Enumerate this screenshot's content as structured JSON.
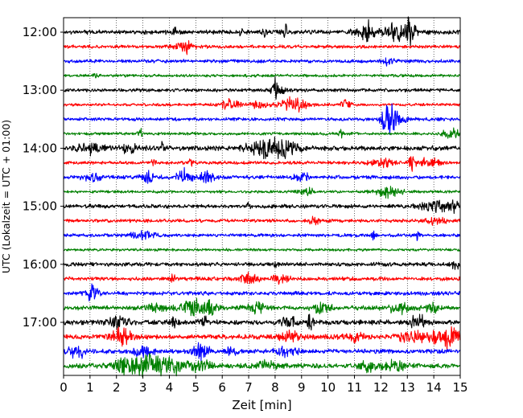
{
  "chart_data": {
    "type": "line",
    "subtype": "helicorder",
    "xlabel": "Zeit  [min]",
    "ylabel": "UTC (Lokalzeit = UTC + 01:00)",
    "xlim": [
      0,
      15
    ],
    "x_ticks": [
      "0",
      "1",
      "2",
      "3",
      "4",
      "5",
      "6",
      "7",
      "8",
      "9",
      "10",
      "11",
      "12",
      "13",
      "14",
      "15"
    ],
    "y_ticks": [
      {
        "label": "12:00",
        "trace_index": 0
      },
      {
        "label": "13:00",
        "trace_index": 4
      },
      {
        "label": "14:00",
        "trace_index": 8
      },
      {
        "label": "15:00",
        "trace_index": 12
      },
      {
        "label": "16:00",
        "trace_index": 16
      },
      {
        "label": "17:00",
        "trace_index": 20
      }
    ],
    "grid": {
      "vertical": true,
      "style": "dotted"
    },
    "color_cycle": [
      "#000000",
      "#ff0000",
      "#0000ff",
      "#008000"
    ],
    "traces": [
      {
        "start": "12:00",
        "color": "#000000",
        "base_amplitude": 0.45,
        "bursts": [
          {
            "t": 4.2,
            "a": 1.2,
            "w": 0.05
          },
          {
            "t": 6.7,
            "a": 1.0,
            "w": 0.05
          },
          {
            "t": 7.6,
            "a": 1.4,
            "w": 0.05
          },
          {
            "t": 8.4,
            "a": 1.5,
            "w": 0.05
          },
          {
            "t": 11.4,
            "a": 1.2,
            "w": 0.3
          },
          {
            "t": 11.5,
            "a": 2.2,
            "w": 0.06
          },
          {
            "t": 12.6,
            "a": 1.8,
            "w": 0.35
          },
          {
            "t": 13.1,
            "a": 2.2,
            "w": 0.15
          }
        ]
      },
      {
        "start": "12:15",
        "color": "#ff0000",
        "base_amplitude": 0.35,
        "bursts": [
          {
            "t": 4.6,
            "a": 2.4,
            "w": 0.06
          },
          {
            "t": 4.5,
            "a": 0.8,
            "w": 0.3
          }
        ]
      },
      {
        "start": "12:30",
        "color": "#0000ff",
        "base_amplitude": 0.35,
        "bursts": [
          {
            "t": 12.3,
            "a": 0.8,
            "w": 0.15
          }
        ]
      },
      {
        "start": "12:45",
        "color": "#008000",
        "base_amplitude": 0.3,
        "bursts": [
          {
            "t": 1.2,
            "a": 0.6,
            "w": 0.06
          }
        ]
      },
      {
        "start": "13:00",
        "color": "#000000",
        "base_amplitude": 0.35,
        "bursts": [
          {
            "t": 8.0,
            "a": 2.0,
            "w": 0.05
          },
          {
            "t": 8.1,
            "a": 1.0,
            "w": 0.2
          }
        ]
      },
      {
        "start": "13:15",
        "color": "#ff0000",
        "base_amplitude": 0.3,
        "bursts": [
          {
            "t": 6.3,
            "a": 1.0,
            "w": 0.25
          },
          {
            "t": 7.4,
            "a": 0.9,
            "w": 0.2
          },
          {
            "t": 8.7,
            "a": 1.5,
            "w": 0.35
          },
          {
            "t": 10.7,
            "a": 1.4,
            "w": 0.12
          }
        ]
      },
      {
        "start": "13:30",
        "color": "#0000ff",
        "base_amplitude": 0.35,
        "bursts": [
          {
            "t": 12.3,
            "a": 2.8,
            "w": 0.18
          },
          {
            "t": 12.5,
            "a": 1.2,
            "w": 0.3
          }
        ]
      },
      {
        "start": "13:45",
        "color": "#008000",
        "base_amplitude": 0.3,
        "bursts": [
          {
            "t": 2.9,
            "a": 1.0,
            "w": 0.06
          },
          {
            "t": 10.5,
            "a": 0.8,
            "w": 0.06
          },
          {
            "t": 14.7,
            "a": 1.1,
            "w": 0.25
          }
        ]
      },
      {
        "start": "14:00",
        "color": "#000000",
        "base_amplitude": 0.5,
        "bursts": [
          {
            "t": 1.0,
            "a": 1.1,
            "w": 0.3
          },
          {
            "t": 2.5,
            "a": 1.0,
            "w": 0.2
          },
          {
            "t": 3.7,
            "a": 1.3,
            "w": 0.05
          },
          {
            "t": 7.6,
            "a": 1.6,
            "w": 0.45
          },
          {
            "t": 8.4,
            "a": 1.9,
            "w": 0.3
          }
        ]
      },
      {
        "start": "14:15",
        "color": "#ff0000",
        "base_amplitude": 0.35,
        "bursts": [
          {
            "t": 3.4,
            "a": 0.9,
            "w": 0.06
          },
          {
            "t": 4.8,
            "a": 0.8,
            "w": 0.06
          },
          {
            "t": 12.0,
            "a": 0.8,
            "w": 0.3
          },
          {
            "t": 13.2,
            "a": 2.2,
            "w": 0.08
          },
          {
            "t": 13.8,
            "a": 1.0,
            "w": 0.25
          }
        ]
      },
      {
        "start": "14:30",
        "color": "#0000ff",
        "base_amplitude": 0.4,
        "bursts": [
          {
            "t": 1.2,
            "a": 0.7,
            "w": 0.3
          },
          {
            "t": 3.2,
            "a": 1.2,
            "w": 0.2
          },
          {
            "t": 4.6,
            "a": 1.6,
            "w": 0.2
          },
          {
            "t": 5.4,
            "a": 1.1,
            "w": 0.2
          },
          {
            "t": 9.0,
            "a": 0.9,
            "w": 0.2
          }
        ]
      },
      {
        "start": "14:45",
        "color": "#008000",
        "base_amplitude": 0.3,
        "bursts": [
          {
            "t": 9.2,
            "a": 0.7,
            "w": 0.2
          },
          {
            "t": 12.2,
            "a": 1.0,
            "w": 0.4
          }
        ]
      },
      {
        "start": "15:00",
        "color": "#000000",
        "base_amplitude": 0.4,
        "bursts": [
          {
            "t": 7.0,
            "a": 1.2,
            "w": 0.06
          },
          {
            "t": 14.0,
            "a": 1.4,
            "w": 0.35
          },
          {
            "t": 14.8,
            "a": 1.0,
            "w": 0.12
          }
        ]
      },
      {
        "start": "15:15",
        "color": "#ff0000",
        "base_amplitude": 0.35,
        "bursts": [
          {
            "t": 9.5,
            "a": 0.9,
            "w": 0.15
          },
          {
            "t": 14.0,
            "a": 0.6,
            "w": 0.3
          }
        ]
      },
      {
        "start": "15:30",
        "color": "#0000ff",
        "base_amplitude": 0.35,
        "bursts": [
          {
            "t": 3.0,
            "a": 0.8,
            "w": 0.3
          },
          {
            "t": 11.7,
            "a": 1.3,
            "w": 0.06
          },
          {
            "t": 13.4,
            "a": 1.0,
            "w": 0.06
          }
        ]
      },
      {
        "start": "15:45",
        "color": "#008000",
        "base_amplitude": 0.28,
        "bursts": []
      },
      {
        "start": "16:00",
        "color": "#000000",
        "base_amplitude": 0.4,
        "bursts": [
          {
            "t": 8.0,
            "a": 0.9,
            "w": 0.06
          },
          {
            "t": 14.8,
            "a": 1.0,
            "w": 0.15
          }
        ]
      },
      {
        "start": "16:15",
        "color": "#ff0000",
        "base_amplitude": 0.4,
        "bursts": [
          {
            "t": 4.1,
            "a": 1.6,
            "w": 0.06
          },
          {
            "t": 7.0,
            "a": 1.0,
            "w": 0.25
          },
          {
            "t": 8.2,
            "a": 1.0,
            "w": 0.2
          }
        ]
      },
      {
        "start": "16:30",
        "color": "#0000ff",
        "base_amplitude": 0.4,
        "bursts": [
          {
            "t": 1.1,
            "a": 1.7,
            "w": 0.15
          }
        ]
      },
      {
        "start": "16:45",
        "color": "#008000",
        "base_amplitude": 0.45,
        "bursts": [
          {
            "t": 3.5,
            "a": 0.8,
            "w": 0.25
          },
          {
            "t": 5.0,
            "a": 1.6,
            "w": 0.4
          },
          {
            "t": 5.6,
            "a": 2.0,
            "w": 0.08
          },
          {
            "t": 7.2,
            "a": 1.0,
            "w": 0.3
          },
          {
            "t": 9.8,
            "a": 0.9,
            "w": 0.3
          },
          {
            "t": 12.7,
            "a": 1.1,
            "w": 0.3
          },
          {
            "t": 13.9,
            "a": 0.9,
            "w": 0.2
          }
        ]
      },
      {
        "start": "17:00",
        "color": "#000000",
        "base_amplitude": 0.5,
        "bursts": [
          {
            "t": 2.1,
            "a": 1.1,
            "w": 0.3
          },
          {
            "t": 4.2,
            "a": 1.3,
            "w": 0.12
          },
          {
            "t": 5.3,
            "a": 1.5,
            "w": 0.1
          },
          {
            "t": 8.5,
            "a": 1.4,
            "w": 0.2
          },
          {
            "t": 9.3,
            "a": 1.8,
            "w": 0.08
          },
          {
            "t": 13.4,
            "a": 1.6,
            "w": 0.2
          }
        ]
      },
      {
        "start": "17:15",
        "color": "#ff0000",
        "base_amplitude": 0.5,
        "bursts": [
          {
            "t": 2.2,
            "a": 1.8,
            "w": 0.25
          },
          {
            "t": 8.6,
            "a": 1.1,
            "w": 0.3
          },
          {
            "t": 11.0,
            "a": 0.8,
            "w": 0.3
          },
          {
            "t": 13.2,
            "a": 1.3,
            "w": 0.35
          },
          {
            "t": 14.5,
            "a": 2.1,
            "w": 0.4
          }
        ]
      },
      {
        "start": "17:30",
        "color": "#0000ff",
        "base_amplitude": 0.45,
        "bursts": [
          {
            "t": 0.5,
            "a": 1.6,
            "w": 0.2
          },
          {
            "t": 3.0,
            "a": 1.0,
            "w": 0.3
          },
          {
            "t": 5.2,
            "a": 1.6,
            "w": 0.25
          },
          {
            "t": 6.4,
            "a": 0.9,
            "w": 0.2
          },
          {
            "t": 8.4,
            "a": 1.0,
            "w": 0.3
          }
        ]
      },
      {
        "start": "17:45",
        "color": "#008000",
        "base_amplitude": 0.5,
        "bursts": [
          {
            "t": 2.2,
            "a": 1.3,
            "w": 0.3
          },
          {
            "t": 3.2,
            "a": 2.4,
            "w": 0.45
          },
          {
            "t": 4.2,
            "a": 1.6,
            "w": 0.3
          },
          {
            "t": 5.2,
            "a": 1.1,
            "w": 0.3
          },
          {
            "t": 7.6,
            "a": 1.0,
            "w": 0.3
          },
          {
            "t": 11.5,
            "a": 1.8,
            "w": 0.2
          },
          {
            "t": 12.5,
            "a": 1.0,
            "w": 0.3
          }
        ]
      }
    ]
  }
}
